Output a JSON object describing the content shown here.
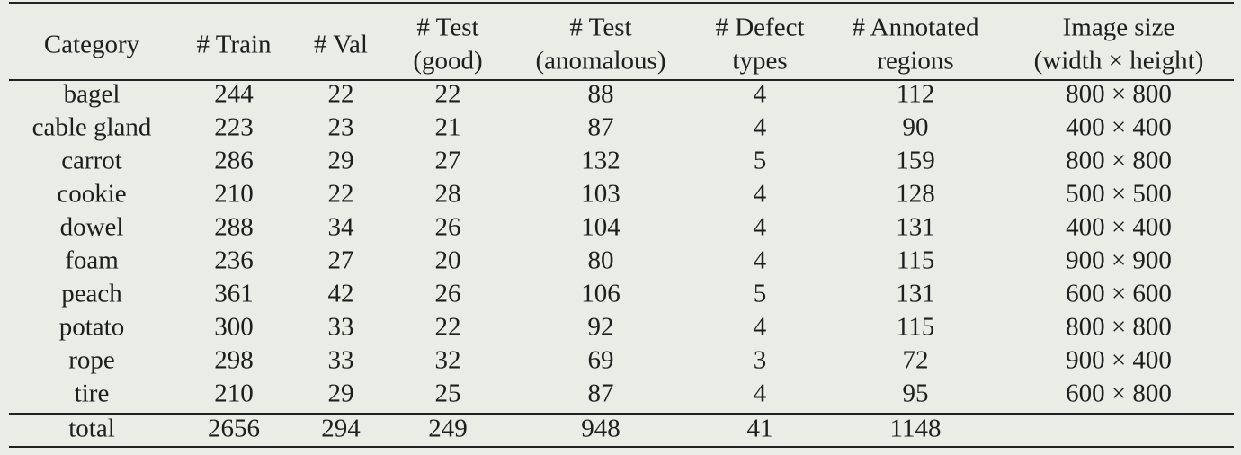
{
  "header": [
    [
      "Category"
    ],
    [
      "# Train"
    ],
    [
      "# Val"
    ],
    [
      "# Test",
      "(good)"
    ],
    [
      "# Test",
      "(anomalous)"
    ],
    [
      "# Defect",
      "types"
    ],
    [
      "# Annotated",
      "regions"
    ],
    [
      "Image size",
      "(width × height)"
    ]
  ],
  "rows": [
    [
      "bagel",
      244,
      22,
      22,
      88,
      4,
      112,
      "800 × 800"
    ],
    [
      "cable gland",
      223,
      23,
      21,
      87,
      4,
      90,
      "400 × 400"
    ],
    [
      "carrot",
      286,
      29,
      27,
      132,
      5,
      159,
      "800 × 800"
    ],
    [
      "cookie",
      210,
      22,
      28,
      103,
      4,
      128,
      "500 × 500"
    ],
    [
      "dowel",
      288,
      34,
      26,
      104,
      4,
      131,
      "400 × 400"
    ],
    [
      "foam",
      236,
      27,
      20,
      80,
      4,
      115,
      "900 × 900"
    ],
    [
      "peach",
      361,
      42,
      26,
      106,
      5,
      131,
      "600 × 600"
    ],
    [
      "potato",
      300,
      33,
      22,
      92,
      4,
      115,
      "800 × 800"
    ],
    [
      "rope",
      298,
      33,
      32,
      69,
      3,
      72,
      "900 × 400"
    ],
    [
      "tire",
      210,
      29,
      25,
      87,
      4,
      95,
      "600 × 800"
    ]
  ],
  "total": [
    "total",
    2656,
    294,
    249,
    948,
    41,
    1148
  ]
}
